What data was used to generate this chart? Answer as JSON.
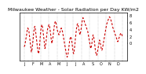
{
  "title": "Milwaukee Weather - Solar Radiation per Day KW/m2",
  "background_color": "#ffffff",
  "line_color": "#cc0000",
  "grid_color": "#999999",
  "x_labels": [
    "J",
    "C",
    "1",
    "p",
    "F",
    "F",
    "S",
    "p",
    "A",
    "2",
    "L",
    "5",
    "J",
    "7",
    "L",
    "5",
    "S",
    "1",
    "O",
    "5",
    "N",
    "7",
    "L",
    "E"
  ],
  "ylim": [
    -5,
    9
  ],
  "yticks": [
    0,
    2,
    4,
    6,
    8
  ],
  "ytick_labels": [
    "0",
    "2",
    "4",
    "6",
    "8"
  ],
  "y_values": [
    -1.0,
    -0.5,
    0.5,
    1.5,
    2.5,
    3.8,
    4.5,
    4.2,
    3.5,
    2.0,
    0.5,
    -1.0,
    -2.5,
    -2.0,
    -0.5,
    1.0,
    3.0,
    4.5,
    5.0,
    4.0,
    2.5,
    1.0,
    -0.5,
    -2.0,
    -3.0,
    -2.5,
    -1.0,
    1.5,
    3.5,
    5.0,
    5.5,
    4.8,
    3.5,
    2.0,
    0.5,
    -1.5,
    -1.0,
    0.5,
    2.0,
    3.5,
    4.5,
    5.0,
    5.5,
    5.0,
    4.0,
    2.5,
    1.0,
    0.0,
    1.0,
    2.0,
    3.5,
    5.0,
    6.0,
    6.5,
    6.0,
    5.0,
    4.0,
    3.5,
    3.0,
    2.5,
    3.0,
    3.5,
    4.0,
    4.5,
    4.0,
    3.5,
    2.5,
    1.5,
    0.5,
    -0.5,
    -1.5,
    -2.5,
    -3.5,
    -4.0,
    -3.5,
    -2.5,
    -1.0,
    0.5,
    1.5,
    2.0,
    1.5,
    0.5,
    -1.0,
    -2.5,
    -3.0,
    -2.0,
    -0.5,
    1.5,
    3.0,
    4.5,
    5.5,
    5.8,
    5.0,
    4.0,
    3.0,
    2.5,
    3.5,
    4.5,
    6.0,
    7.0,
    7.5,
    7.0,
    6.5,
    6.0,
    5.5,
    5.0,
    4.5,
    4.0,
    3.5,
    2.5,
    1.5,
    0.5,
    -0.5,
    -1.5,
    -1.0,
    0.0,
    1.5,
    2.5,
    2.0,
    1.0,
    -0.5,
    -2.0,
    -3.0,
    -3.5,
    -3.0,
    -2.0,
    -1.0,
    0.0,
    1.0,
    0.5,
    -0.5,
    -1.5,
    -2.0,
    -1.5,
    -0.5,
    0.5,
    1.5,
    2.5,
    3.5,
    4.5,
    5.5,
    6.0,
    6.5,
    7.0,
    7.5,
    7.8,
    7.5,
    7.0,
    6.5,
    6.0,
    5.0,
    4.5,
    4.0,
    3.5,
    3.0,
    2.5,
    2.0,
    1.5,
    1.0,
    0.5,
    1.0,
    1.5,
    2.0,
    2.5,
    3.0,
    3.0,
    2.5,
    2.0
  ],
  "title_fontsize": 4.5,
  "tick_fontsize": 3.5,
  "n_grid_lines": 12
}
